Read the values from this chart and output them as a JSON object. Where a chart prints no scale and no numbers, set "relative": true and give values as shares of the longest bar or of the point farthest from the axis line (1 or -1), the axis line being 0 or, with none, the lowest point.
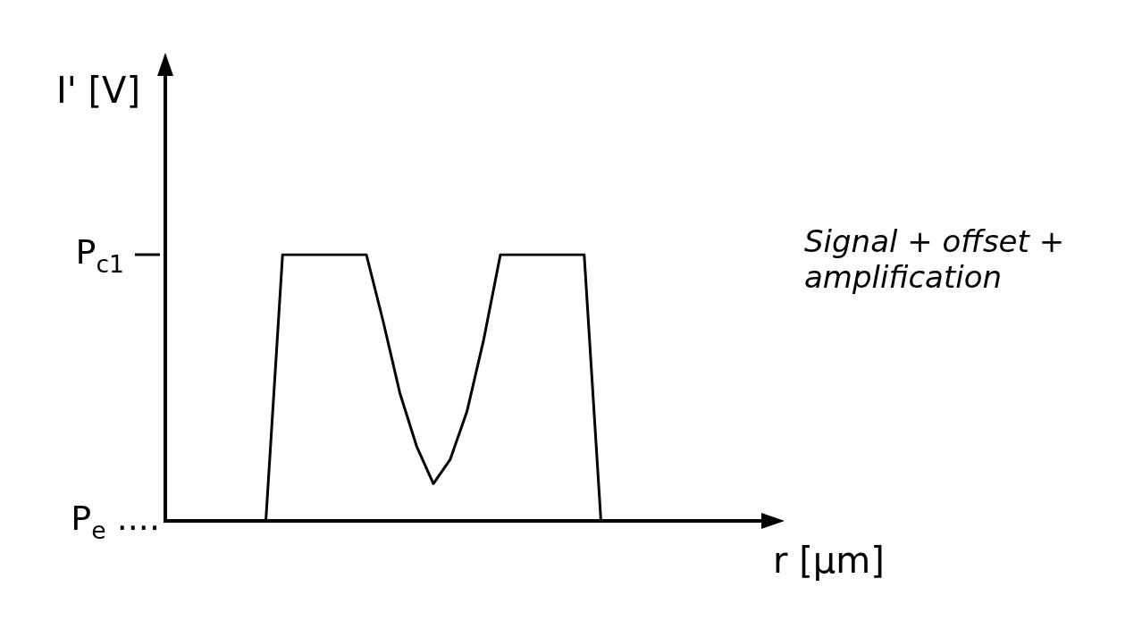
{
  "chart_data": {
    "type": "line",
    "xlabel": "r [μm]",
    "ylabel": "I' [V]",
    "categories": [
      null,
      null,
      null,
      null,
      null,
      null,
      null,
      null,
      null,
      null,
      null,
      null,
      null,
      null,
      null,
      null,
      null,
      null,
      null,
      null,
      null,
      null,
      null,
      null,
      null,
      null,
      null,
      null,
      null,
      null,
      null,
      null,
      null,
      null,
      null,
      null,
      null
    ],
    "series": [
      {
        "color": "#000000",
        "values": [
          null,
          null,
          null,
          null,
          null,
          null,
          0,
          1,
          1,
          1,
          1,
          1,
          1,
          0.75,
          0.48,
          0.28,
          0.14,
          0.23,
          0.41,
          0.68,
          1,
          1,
          1,
          1,
          1,
          1,
          0,
          null,
          null,
          null,
          null,
          null,
          null,
          null,
          null,
          null,
          null
        ]
      }
    ],
    "relative": true,
    "ref_lines": [
      {
        "axis": "y",
        "value": 1,
        "label": "P$_{c1}$",
        "line_style": "solid"
      }
    ],
    "legend": false,
    "marker": "none",
    "line_style": "solid",
    "annotations": [
      "P$_{e}$ ....",
      "Signal + offset + amplification"
    ]
  }
}
